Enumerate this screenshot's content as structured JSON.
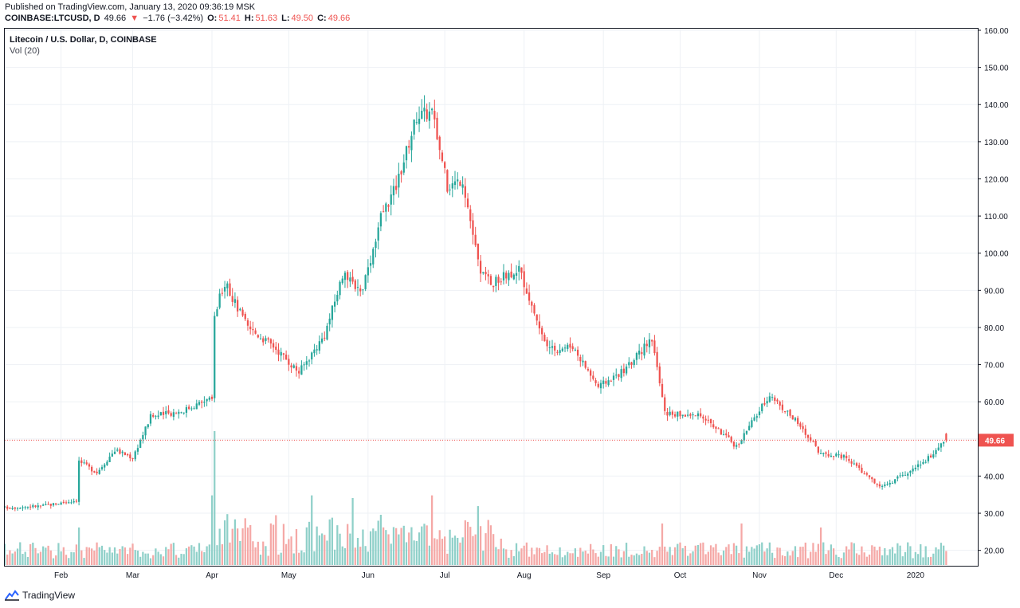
{
  "header": {
    "published": "Published on TradingView.com, January 13, 2020 09:36:19 MSK",
    "symbol": "COINBASE:LTCUSD, D",
    "price": "49.66",
    "down_arrow": "▼",
    "change": "−1.76 (−3.42%)",
    "open_label": "O:",
    "open": "51.41",
    "high_label": "H:",
    "high": "51.63",
    "low_label": "L:",
    "low": "49.50",
    "close_label": "C:",
    "close": "49.66"
  },
  "legend": {
    "title": "Litecoin / U.S. Dollar, D, COINBASE",
    "volume": "Vol (20)"
  },
  "footer": {
    "brand": "TradingView"
  },
  "colors": {
    "up": "#26a69a",
    "down": "#ef5350",
    "vol_up": "#8fd0c9",
    "vol_down": "#f5a8a6",
    "grid": "#eef1f5",
    "last_price": "#ef5350"
  },
  "chart_data": {
    "type": "candlestick",
    "title": "Litecoin / U.S. Dollar, D, COINBASE",
    "y_ticks": [
      "160.00",
      "150.00",
      "140.00",
      "130.00",
      "120.00",
      "110.00",
      "100.00",
      "90.00",
      "80.00",
      "70.00",
      "60.00",
      "50.00",
      "40.00",
      "30.00",
      "20.00"
    ],
    "y_range": [
      18,
      160
    ],
    "x_ticks": [
      {
        "label": "Feb",
        "date": "2019-02-01"
      },
      {
        "label": "Mar",
        "date": "2019-03-01"
      },
      {
        "label": "Apr",
        "date": "2019-04-01"
      },
      {
        "label": "May",
        "date": "2019-05-01"
      },
      {
        "label": "Jun",
        "date": "2019-06-01"
      },
      {
        "label": "Jul",
        "date": "2019-07-01"
      },
      {
        "label": "Aug",
        "date": "2019-08-01"
      },
      {
        "label": "Sep",
        "date": "2019-09-01"
      },
      {
        "label": "Oct",
        "date": "2019-10-01"
      },
      {
        "label": "Nov",
        "date": "2019-11-01"
      },
      {
        "label": "Dec",
        "date": "2019-12-01"
      },
      {
        "label": "2020",
        "date": "2020-01-01"
      }
    ],
    "x_range": [
      "2019-01-10",
      "2020-01-16"
    ],
    "last_price": "49.66",
    "last_price_value": 49.66,
    "close_series": [
      {
        "date": "2019-01-10",
        "close": 31.5
      },
      {
        "date": "2019-01-25",
        "close": 32.0
      },
      {
        "date": "2019-02-07",
        "close": 33.5
      },
      {
        "date": "2019-02-08",
        "close": 44.0
      },
      {
        "date": "2019-02-15",
        "close": 41.0
      },
      {
        "date": "2019-02-22",
        "close": 47.0
      },
      {
        "date": "2019-03-01",
        "close": 45.0
      },
      {
        "date": "2019-03-08",
        "close": 56.0
      },
      {
        "date": "2019-03-20",
        "close": 57.5
      },
      {
        "date": "2019-03-30",
        "close": 60.5
      },
      {
        "date": "2019-04-01",
        "close": 60.5
      },
      {
        "date": "2019-04-02",
        "close": 84.0
      },
      {
        "date": "2019-04-06",
        "close": 92.0
      },
      {
        "date": "2019-04-15",
        "close": 80.0
      },
      {
        "date": "2019-04-25",
        "close": 75.0
      },
      {
        "date": "2019-05-05",
        "close": 68.0
      },
      {
        "date": "2019-05-15",
        "close": 78.0
      },
      {
        "date": "2019-05-22",
        "close": 94.0
      },
      {
        "date": "2019-05-30",
        "close": 90.0
      },
      {
        "date": "2019-06-06",
        "close": 110.0
      },
      {
        "date": "2019-06-12",
        "close": 118.0
      },
      {
        "date": "2019-06-20",
        "close": 137.0
      },
      {
        "date": "2019-06-26",
        "close": 138.0
      },
      {
        "date": "2019-07-02",
        "close": 118.0
      },
      {
        "date": "2019-07-08",
        "close": 120.0
      },
      {
        "date": "2019-07-15",
        "close": 94.0
      },
      {
        "date": "2019-07-20",
        "close": 92.0
      },
      {
        "date": "2019-07-30",
        "close": 96.0
      },
      {
        "date": "2019-08-10",
        "close": 74.0
      },
      {
        "date": "2019-08-20",
        "close": 75.0
      },
      {
        "date": "2019-08-30",
        "close": 64.0
      },
      {
        "date": "2019-09-10",
        "close": 69.0
      },
      {
        "date": "2019-09-20",
        "close": 77.0
      },
      {
        "date": "2019-09-25",
        "close": 57.0
      },
      {
        "date": "2019-10-10",
        "close": 56.0
      },
      {
        "date": "2019-10-23",
        "close": 48.0
      },
      {
        "date": "2019-11-05",
        "close": 62.0
      },
      {
        "date": "2019-11-15",
        "close": 55.0
      },
      {
        "date": "2019-11-25",
        "close": 46.0
      },
      {
        "date": "2019-12-05",
        "close": 45.0
      },
      {
        "date": "2019-12-18",
        "close": 37.0
      },
      {
        "date": "2019-12-30",
        "close": 41.0
      },
      {
        "date": "2020-01-08",
        "close": 46.0
      },
      {
        "date": "2020-01-13",
        "close": 49.66
      }
    ],
    "volume_spikes": [
      {
        "date": "2019-02-08",
        "direction": "up",
        "level": 0.28
      },
      {
        "date": "2019-04-02",
        "direction": "up",
        "level": 1.0
      },
      {
        "date": "2019-04-01",
        "direction": "up",
        "level": 0.52
      },
      {
        "date": "2019-05-10",
        "direction": "up",
        "level": 0.52
      },
      {
        "date": "2019-05-26",
        "direction": "up",
        "level": 0.5
      },
      {
        "date": "2019-06-26",
        "direction": "down",
        "level": 0.52
      },
      {
        "date": "2019-07-14",
        "direction": "up",
        "level": 0.44
      },
      {
        "date": "2019-09-24",
        "direction": "down",
        "level": 0.31
      },
      {
        "date": "2019-10-25",
        "direction": "down",
        "level": 0.31
      },
      {
        "date": "2019-11-25",
        "direction": "down",
        "level": 0.28
      }
    ]
  }
}
